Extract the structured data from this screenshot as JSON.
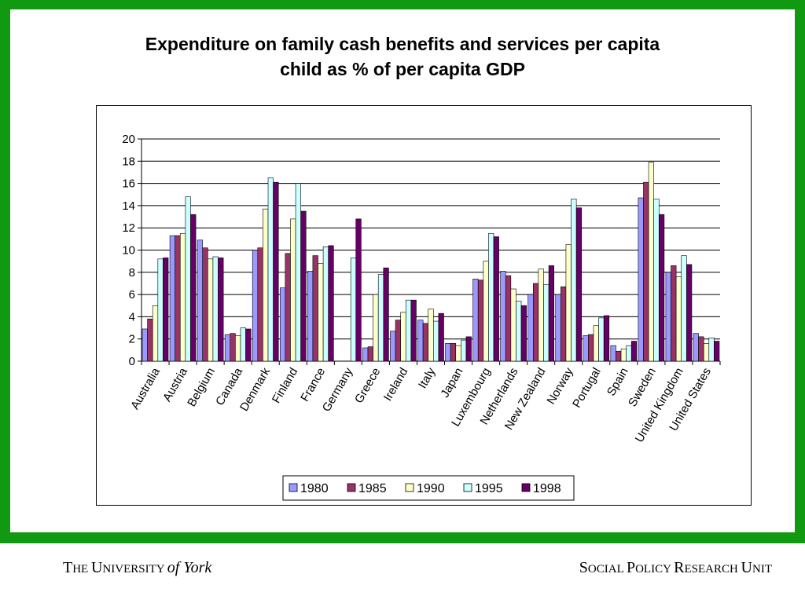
{
  "slide": {
    "title_line1": "Expenditure on family cash benefits and services per capita",
    "title_line2": "child as % of per capita GDP",
    "colors": {
      "frame": "#119911"
    }
  },
  "footer": {
    "left": {
      "the_big": "T",
      "the_small": "HE ",
      "u_big": "U",
      "u_small": "NIVERSITY ",
      "of_york": "of York"
    },
    "right": {
      "s_big": "S",
      "s_small": "OCIAL ",
      "p_big": "P",
      "p_small": "OLICY ",
      "r_big": "R",
      "r_small": "ESEARCH ",
      "un_big": "U",
      "un_small": "NIT"
    }
  },
  "chart_data": {
    "type": "bar",
    "title": "",
    "xlabel": "",
    "ylabel": "",
    "ylim": [
      0,
      20
    ],
    "yticks": [
      0,
      2,
      4,
      6,
      8,
      10,
      12,
      14,
      16,
      18,
      20
    ],
    "grid": true,
    "legend_position": "bottom",
    "categories": [
      "Australia",
      "Austria",
      "Belgium",
      "Canada",
      "Denmark",
      "Finland",
      "France",
      "Germany",
      "Greece",
      "Ireland",
      "Italy",
      "Japan",
      "Luxembourg",
      "Netherlands",
      "New Zealand",
      "Norway",
      "Portugal",
      "Spain",
      "Sweden",
      "United Kingdom",
      "United States"
    ],
    "series": [
      {
        "name": "1980",
        "color": "#9999ff",
        "values": [
          2.9,
          11.3,
          10.9,
          2.4,
          10.0,
          6.6,
          8.1,
          null,
          1.2,
          2.7,
          3.7,
          1.6,
          7.4,
          8.1,
          6.0,
          6.0,
          2.3,
          1.4,
          14.7,
          8.0,
          2.5
        ]
      },
      {
        "name": "1985",
        "color": "#993366",
        "values": [
          3.8,
          11.3,
          10.2,
          2.5,
          10.2,
          9.7,
          9.5,
          null,
          1.3,
          3.7,
          3.4,
          1.6,
          7.3,
          7.7,
          7.0,
          6.7,
          2.4,
          0.9,
          16.1,
          8.6,
          2.2
        ]
      },
      {
        "name": "1990",
        "color": "#ffffcc",
        "values": [
          5.0,
          11.5,
          9.2,
          2.3,
          13.7,
          12.8,
          8.8,
          null,
          6.0,
          4.4,
          4.7,
          1.4,
          9.0,
          6.5,
          8.3,
          10.5,
          3.2,
          1.1,
          17.9,
          7.6,
          1.6
        ]
      },
      {
        "name": "1995",
        "color": "#ccffff",
        "values": [
          9.2,
          14.8,
          9.4,
          3.0,
          16.5,
          16.0,
          10.3,
          9.3,
          7.8,
          5.5,
          3.6,
          1.9,
          11.5,
          5.4,
          6.9,
          14.6,
          3.9,
          1.4,
          14.6,
          9.5,
          2.1
        ]
      },
      {
        "name": "1998",
        "color": "#660066",
        "values": [
          9.3,
          13.2,
          9.3,
          2.9,
          16.1,
          13.5,
          10.4,
          12.8,
          8.4,
          5.5,
          4.3,
          2.2,
          11.2,
          5.0,
          8.6,
          13.8,
          4.1,
          1.8,
          13.2,
          8.7,
          1.8
        ]
      }
    ]
  }
}
